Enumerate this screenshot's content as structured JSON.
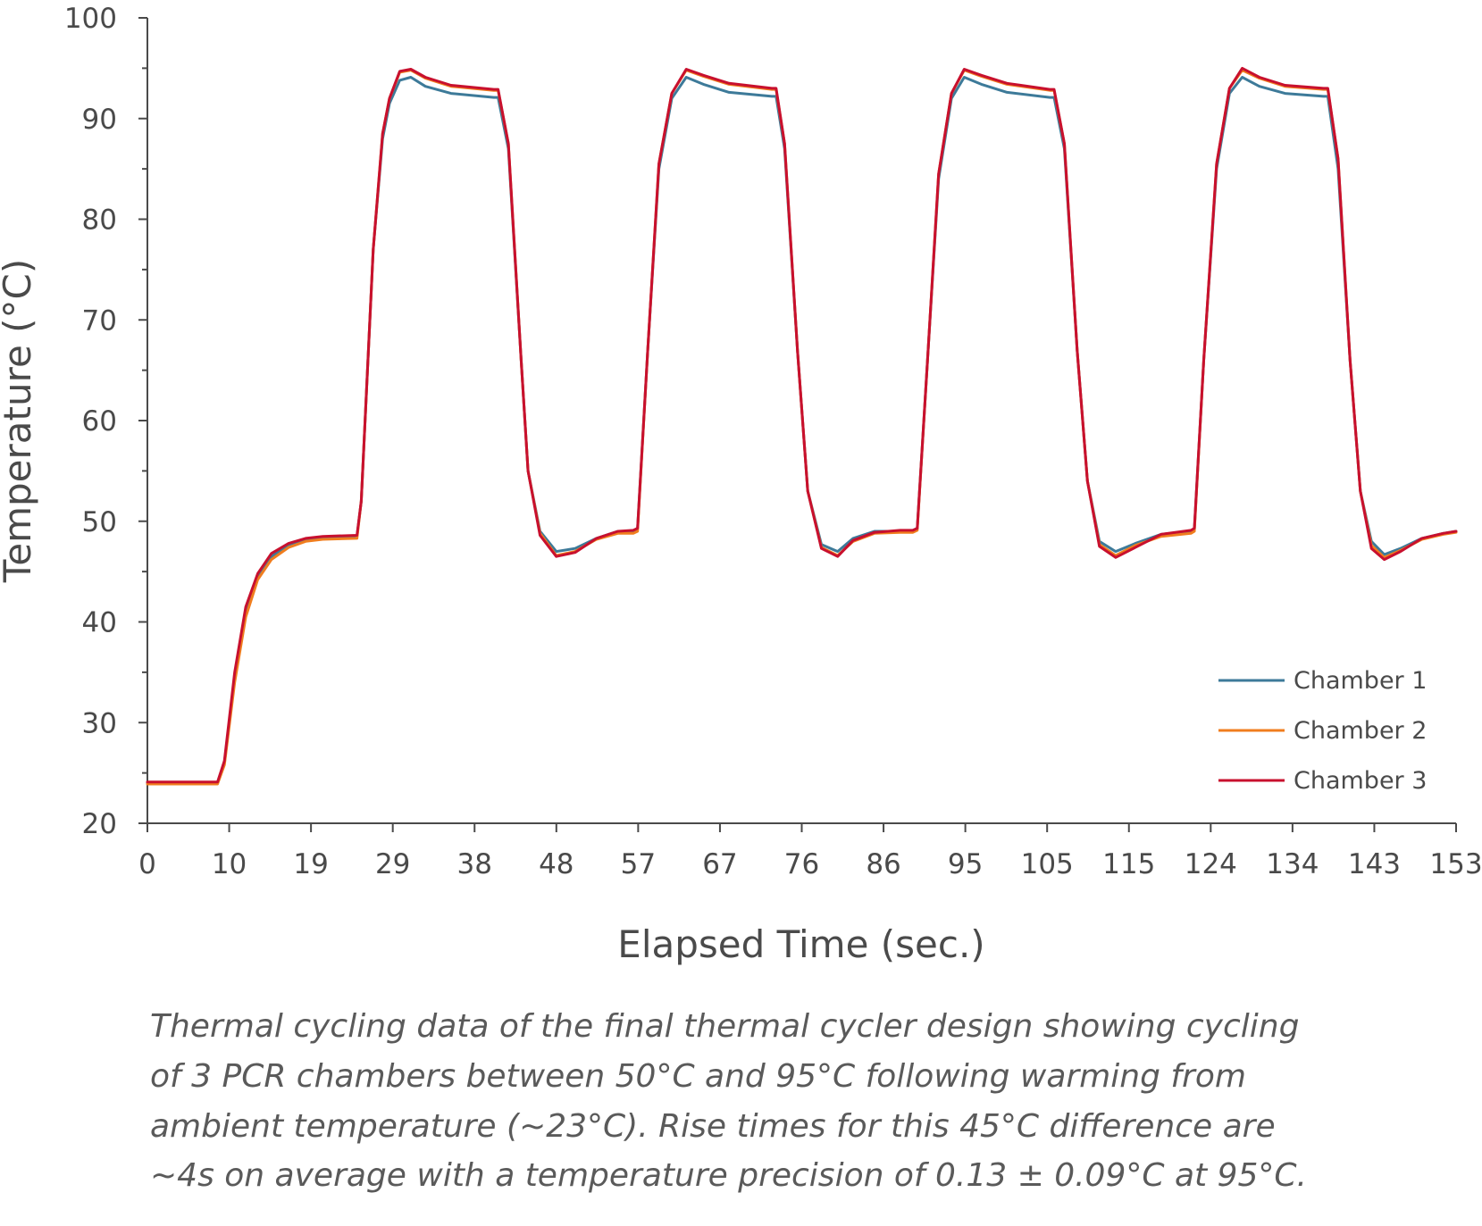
{
  "chart_data": {
    "type": "line",
    "xlabel": "Elapsed Time (sec.)",
    "ylabel": "Temperature (°C)",
    "ylim": [
      20,
      100
    ],
    "xlim": [
      0,
      153
    ],
    "x_ticks": [
      "0",
      "10",
      "19",
      "29",
      "38",
      "48",
      "57",
      "67",
      "76",
      "86",
      "95",
      "105",
      "115",
      "124",
      "134",
      "143",
      "153"
    ],
    "y_ticks": [
      "20",
      "30",
      "40",
      "50",
      "60",
      "70",
      "80",
      "90",
      "100"
    ],
    "grid": false,
    "legend_position": "bottom-right",
    "colors": {
      "axis": "#4a4a4a",
      "chamber1": "#3d7a99",
      "chamber2": "#f07d1e",
      "chamber3": "#c8102e"
    },
    "series": [
      {
        "name": "Chamber 1",
        "color": "#3d7a99",
        "x": [
          0,
          8.2,
          9,
          10.2,
          11.5,
          12.9,
          14.5,
          16.5,
          18.5,
          20.5,
          24.5,
          25,
          26.4,
          27.5,
          28.3,
          29.5,
          30.8,
          32.5,
          35.5,
          40.5,
          41,
          42.2,
          43.7,
          44.5,
          45.9,
          47.8,
          50,
          52.5,
          55,
          56.8,
          57.3,
          58.5,
          59.8,
          61.3,
          63,
          65,
          68,
          73,
          73.5,
          74.5,
          76,
          77.2,
          78.8,
          80.7,
          82.5,
          85,
          88,
          89.5,
          90,
          91.2,
          92.5,
          94,
          95.5,
          97.5,
          100.5,
          105.5,
          106,
          107.2,
          108.7,
          109.9,
          111.3,
          113.2,
          115.5,
          118.5,
          122,
          122.4,
          123.5,
          125,
          126.5,
          128,
          130,
          133,
          137.5,
          138,
          139.2,
          140.6,
          141.8,
          143.1,
          144.6,
          146.5,
          149,
          151.5,
          153
        ],
        "y": [
          24,
          24,
          26,
          34.5,
          41,
          44.5,
          46.5,
          47.6,
          48.2,
          48.4,
          48.5,
          52,
          77,
          88,
          91.5,
          93.8,
          94.1,
          93.2,
          92.5,
          92.1,
          92.1,
          87,
          66,
          55,
          49,
          47,
          47.3,
          48.3,
          49,
          49,
          49.3,
          67,
          85,
          92,
          94.1,
          93.4,
          92.6,
          92.2,
          92.2,
          87,
          67,
          53,
          47.7,
          47,
          48.3,
          49,
          49,
          49.1,
          49.3,
          66,
          84,
          92,
          94.1,
          93.4,
          92.6,
          92.1,
          92.1,
          87,
          67,
          54,
          48,
          47,
          47.8,
          48.7,
          49,
          49.2,
          66,
          85,
          92.5,
          94.1,
          93.2,
          92.5,
          92.2,
          92.2,
          85,
          66,
          53,
          48,
          46.7,
          47.3,
          48.3,
          48.8,
          49
        ]
      },
      {
        "name": "Chamber 2",
        "color": "#f07d1e",
        "x": [
          0,
          8.2,
          9,
          10.2,
          11.5,
          12.9,
          14.5,
          16.5,
          18.5,
          20.5,
          24.5,
          25,
          26.4,
          27.5,
          28.3,
          29.5,
          30.8,
          32.5,
          35.5,
          40.5,
          41,
          42.2,
          43.7,
          44.5,
          45.9,
          47.8,
          50,
          52.5,
          55,
          56.8,
          57.3,
          58.5,
          59.8,
          61.3,
          63,
          65,
          68,
          73,
          73.5,
          74.5,
          76,
          77.2,
          78.8,
          80.7,
          82.5,
          85,
          88,
          89.5,
          90,
          91.2,
          92.5,
          94,
          95.5,
          97.5,
          100.5,
          105.5,
          106,
          107.2,
          108.7,
          109.9,
          111.3,
          113.2,
          115.5,
          118.5,
          122,
          122.4,
          123.5,
          125,
          126.5,
          128,
          130,
          133,
          137.5,
          138,
          139.2,
          140.6,
          141.8,
          143.1,
          144.6,
          146.5,
          149,
          151.5,
          153
        ],
        "y": [
          23.9,
          23.9,
          25.8,
          34,
          40.5,
          44.2,
          46.2,
          47.4,
          48,
          48.2,
          48.3,
          52,
          77,
          88.5,
          92,
          94.6,
          94.8,
          94,
          93.2,
          92.8,
          92.8,
          87.5,
          66,
          55,
          48.8,
          46.6,
          47,
          48.2,
          48.8,
          48.8,
          49,
          67,
          85.5,
          92.5,
          94.8,
          94.2,
          93.4,
          92.9,
          92.9,
          87.5,
          67,
          53,
          47.4,
          46.6,
          48,
          48.8,
          48.9,
          48.9,
          49.1,
          66,
          84.5,
          92.5,
          94.8,
          94.2,
          93.4,
          92.8,
          92.8,
          87.5,
          67,
          54,
          47.7,
          46.6,
          47.6,
          48.5,
          48.8,
          49,
          66,
          85.5,
          93,
          94.8,
          94,
          93.2,
          92.9,
          92.9,
          86,
          66,
          53,
          47.6,
          46.4,
          47.1,
          48.2,
          48.7,
          48.9
        ]
      },
      {
        "name": "Chamber 3",
        "color": "#c8102e",
        "x": [
          0,
          8.2,
          9,
          10.2,
          11.5,
          12.9,
          14.5,
          16.5,
          18.5,
          20.5,
          24.5,
          25,
          26.4,
          27.5,
          28.3,
          29.5,
          30.8,
          32.5,
          35.5,
          40.5,
          41,
          42.2,
          43.7,
          44.5,
          45.9,
          47.8,
          50,
          52.5,
          55,
          56.8,
          57.3,
          58.5,
          59.8,
          61.3,
          63,
          65,
          68,
          73,
          73.5,
          74.5,
          76,
          77.2,
          78.8,
          80.7,
          82.5,
          85,
          88,
          89.5,
          90,
          91.2,
          92.5,
          94,
          95.5,
          97.5,
          100.5,
          105.5,
          106,
          107.2,
          108.7,
          109.9,
          111.3,
          113.2,
          115.5,
          118.5,
          122,
          122.4,
          123.5,
          125,
          126.5,
          128,
          130,
          133,
          137.5,
          138,
          139.2,
          140.6,
          141.8,
          143.1,
          144.6,
          146.5,
          149,
          151.5,
          153
        ],
        "y": [
          24.1,
          24.1,
          26.2,
          35,
          41.5,
          44.8,
          46.8,
          47.8,
          48.3,
          48.5,
          48.6,
          52,
          77,
          88.5,
          92,
          94.7,
          94.9,
          94.1,
          93.3,
          92.9,
          92.9,
          87.5,
          66,
          55,
          48.6,
          46.5,
          46.9,
          48.3,
          49,
          49.1,
          49.3,
          67,
          85.5,
          92.5,
          94.9,
          94.3,
          93.5,
          93,
          93,
          87.5,
          67,
          53,
          47.3,
          46.5,
          48.1,
          48.9,
          49.1,
          49.1,
          49.3,
          66,
          84.5,
          92.5,
          94.9,
          94.3,
          93.5,
          92.9,
          92.9,
          87.5,
          67,
          54,
          47.5,
          46.4,
          47.4,
          48.7,
          49.1,
          49.3,
          66,
          85.5,
          93,
          95,
          94.1,
          93.3,
          93,
          93,
          86,
          66,
          53,
          47.3,
          46.2,
          47,
          48.3,
          48.8,
          49
        ]
      }
    ]
  },
  "caption": {
    "line1": "Thermal cycling data of the final thermal cycler design showing cycling",
    "line2": "of 3 PCR chambers between 50°C and 95°C following warming from",
    "line3": "ambient temperature (~23°C). Rise times for this 45°C difference are",
    "line4": "~4s on average with a temperature precision of 0.13 ± 0.09°C at 95°C."
  }
}
